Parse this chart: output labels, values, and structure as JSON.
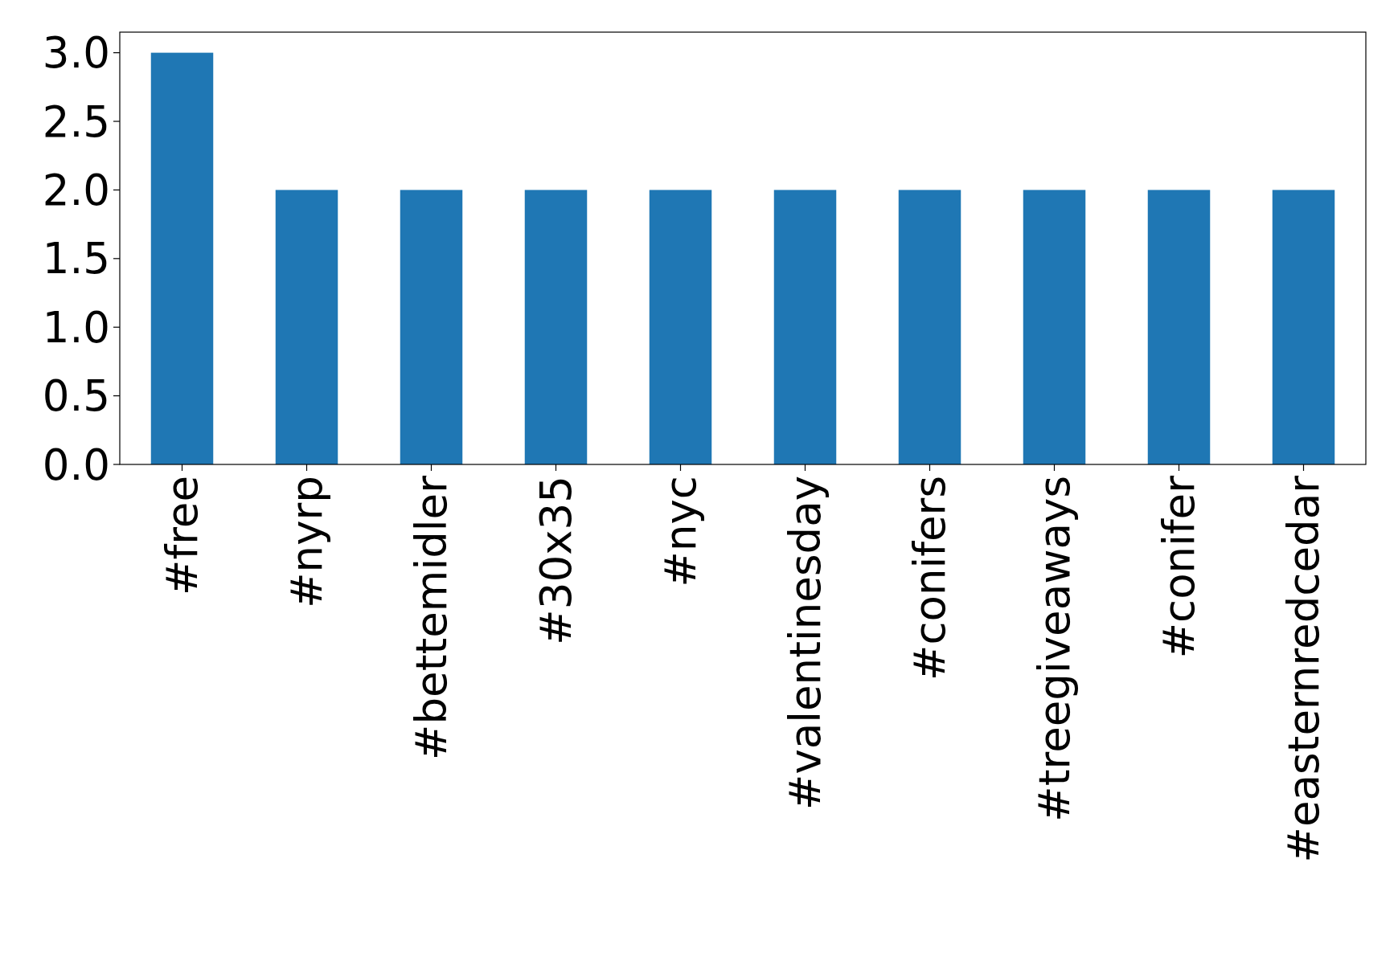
{
  "chart_data": {
    "type": "bar",
    "categories": [
      "#free",
      "#nyrp",
      "#bettemidler",
      "#30x35",
      "#nyc",
      "#valentinesday",
      "#conifers",
      "#treegiveaways",
      "#conifer",
      "#easternredcedar"
    ],
    "values": [
      3,
      2,
      2,
      2,
      2,
      2,
      2,
      2,
      2,
      2
    ],
    "color": "#1f77b4",
    "ylim": [
      0,
      3.15
    ],
    "yticks": [
      {
        "value": 0,
        "label": "0.0"
      },
      {
        "value": 0.5,
        "label": "0.5"
      },
      {
        "value": 1,
        "label": "1.0"
      },
      {
        "value": 1.5,
        "label": "1.5"
      },
      {
        "value": 2,
        "label": "2.0"
      },
      {
        "value": 2.5,
        "label": "2.5"
      },
      {
        "value": 3,
        "label": "3.0"
      }
    ],
    "grid": false
  }
}
